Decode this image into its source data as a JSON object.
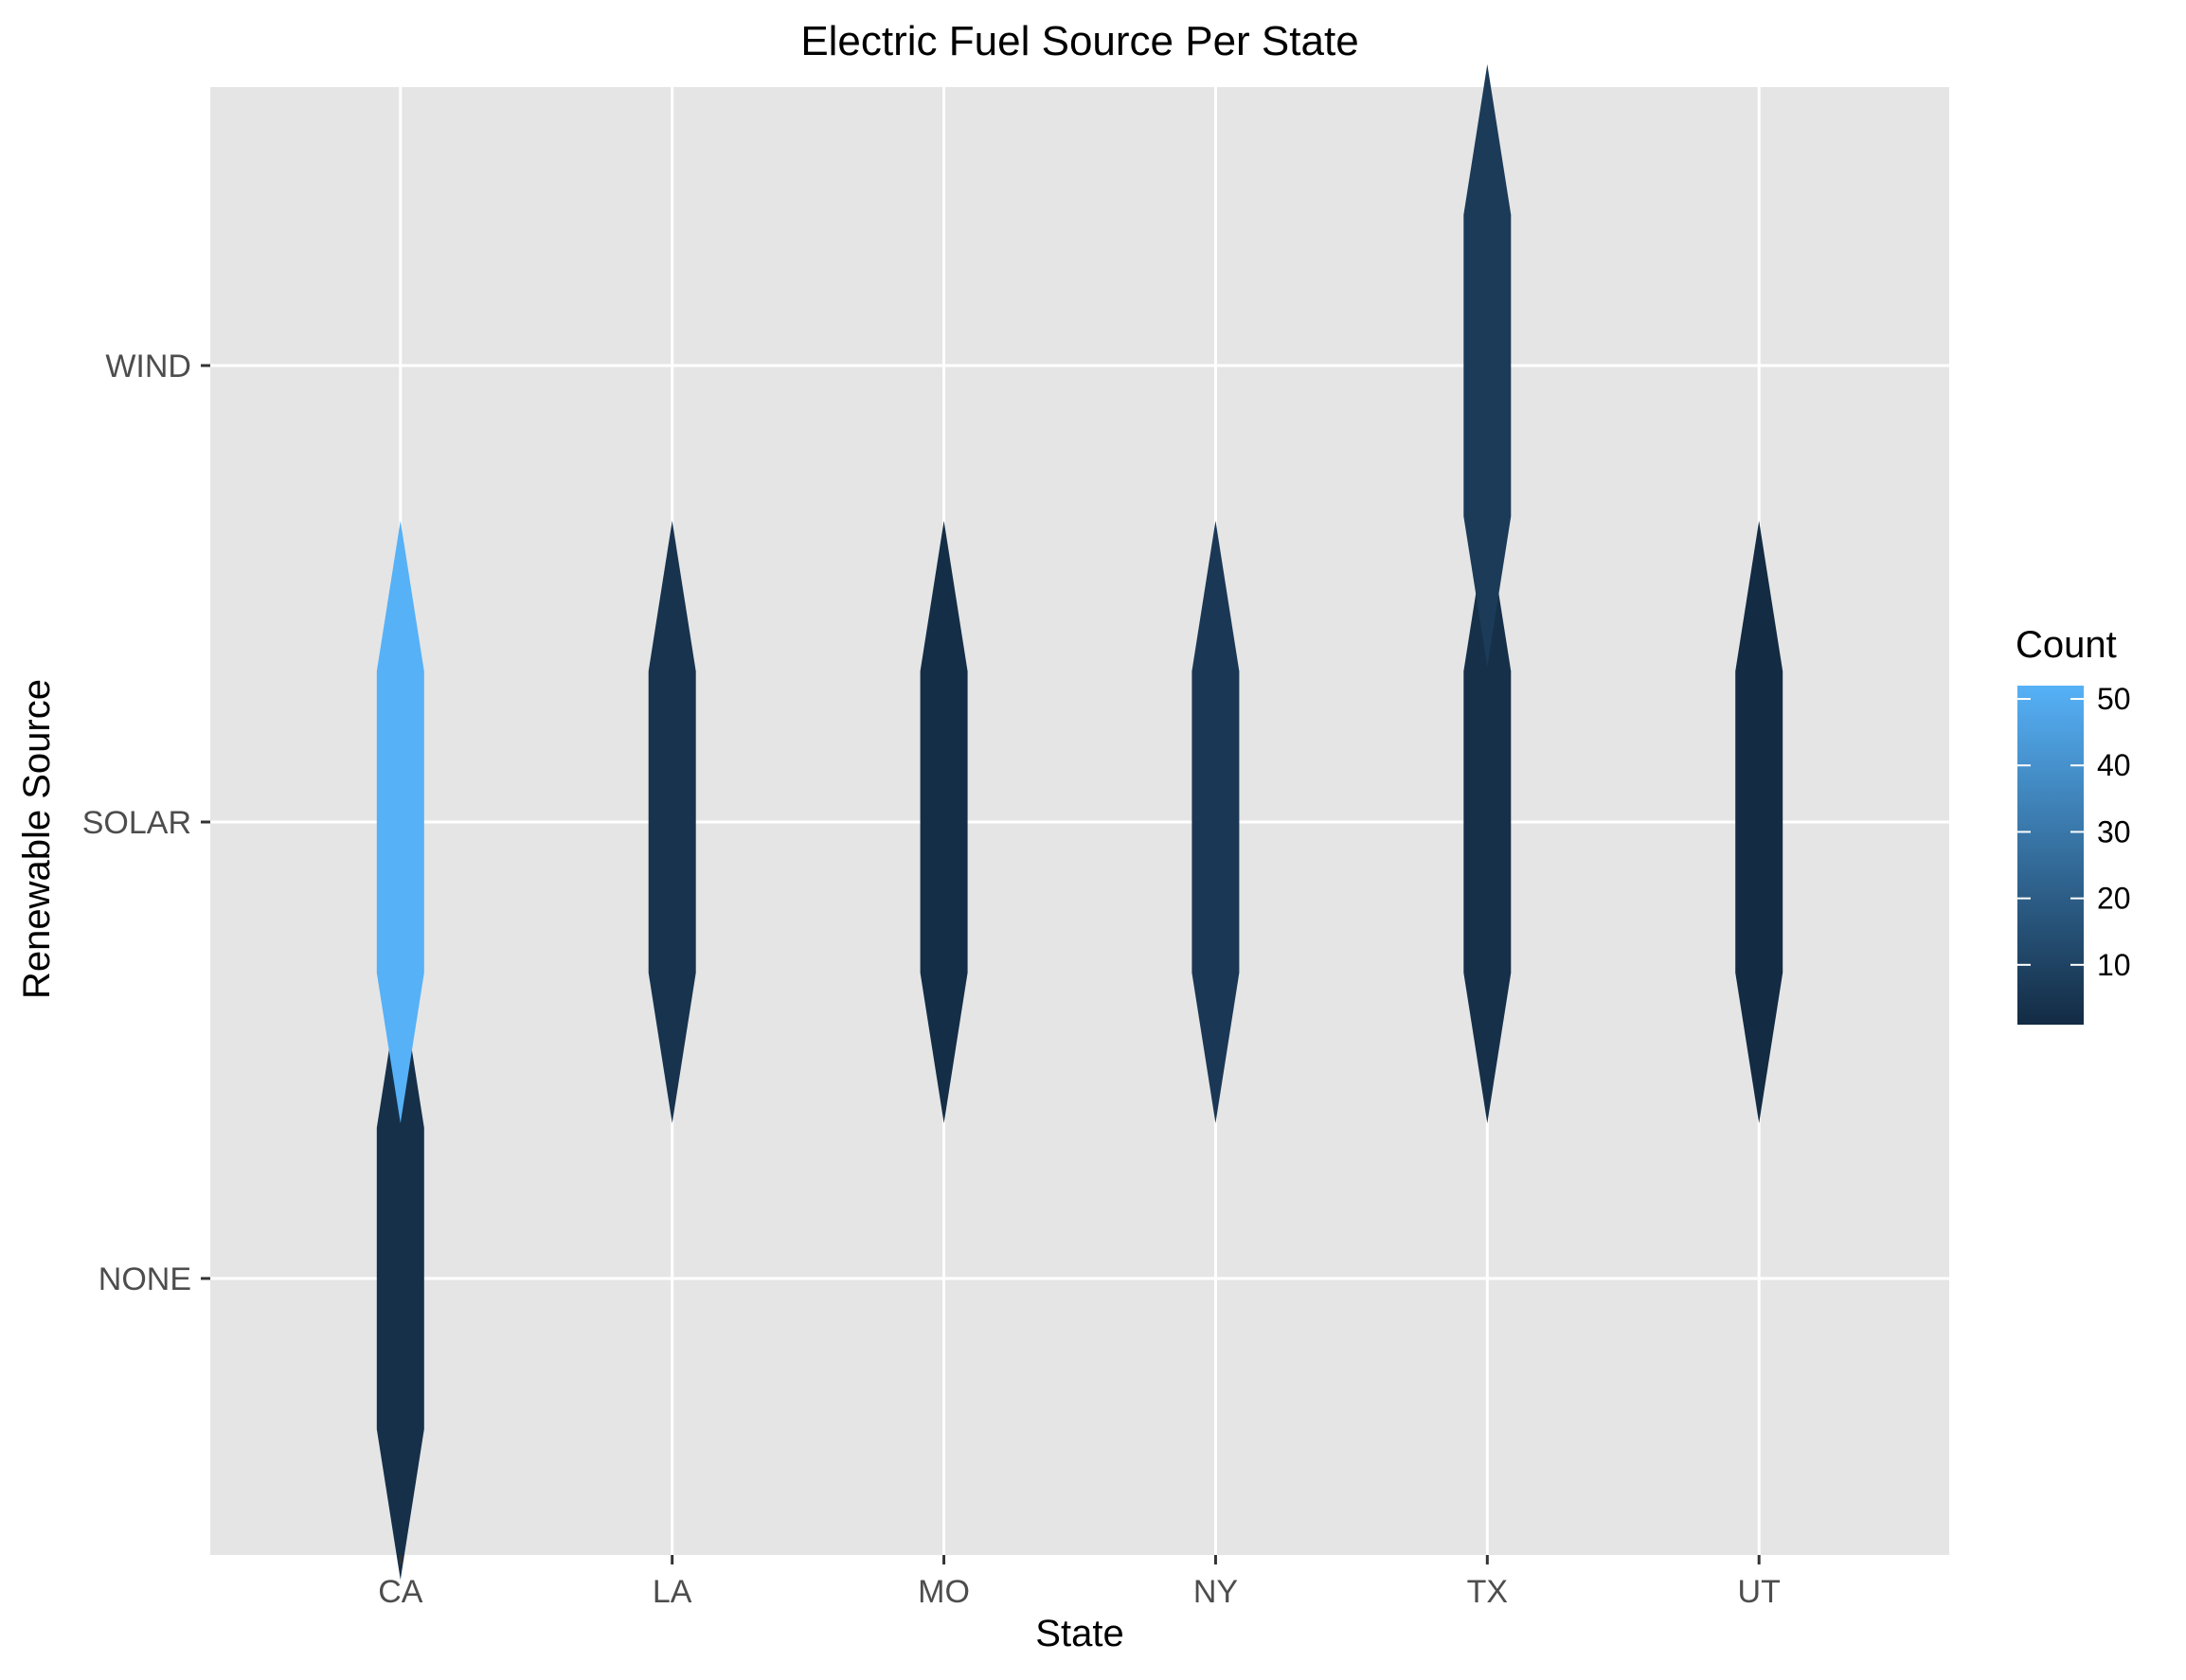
{
  "chart_data": {
    "type": "heatmap",
    "title": "Electric Fuel Source Per State",
    "xlabel": "State",
    "ylabel": "Renewable Source",
    "x_categories": [
      "CA",
      "LA",
      "MO",
      "NY",
      "TX",
      "UT"
    ],
    "y_categories": [
      "NONE",
      "SOLAR",
      "WIND"
    ],
    "cells": [
      {
        "x": "CA",
        "y": "NONE",
        "count": 3
      },
      {
        "x": "CA",
        "y": "SOLAR",
        "count": 52
      },
      {
        "x": "LA",
        "y": "SOLAR",
        "count": 4
      },
      {
        "x": "MO",
        "y": "SOLAR",
        "count": 2
      },
      {
        "x": "NY",
        "y": "SOLAR",
        "count": 6
      },
      {
        "x": "TX",
        "y": "SOLAR",
        "count": 3
      },
      {
        "x": "TX",
        "y": "WIND",
        "count": 7
      },
      {
        "x": "UT",
        "y": "SOLAR",
        "count": 1
      }
    ],
    "legend": {
      "title": "Count",
      "ticks": [
        10,
        20,
        30,
        40,
        50
      ],
      "range": [
        1,
        52
      ],
      "position": "right",
      "low_color": "#132B43",
      "high_color": "#56B1F7"
    },
    "grid": true
  },
  "colors": {
    "panel_background": "#E5E5E5",
    "grid_line": "#FFFFFF"
  }
}
